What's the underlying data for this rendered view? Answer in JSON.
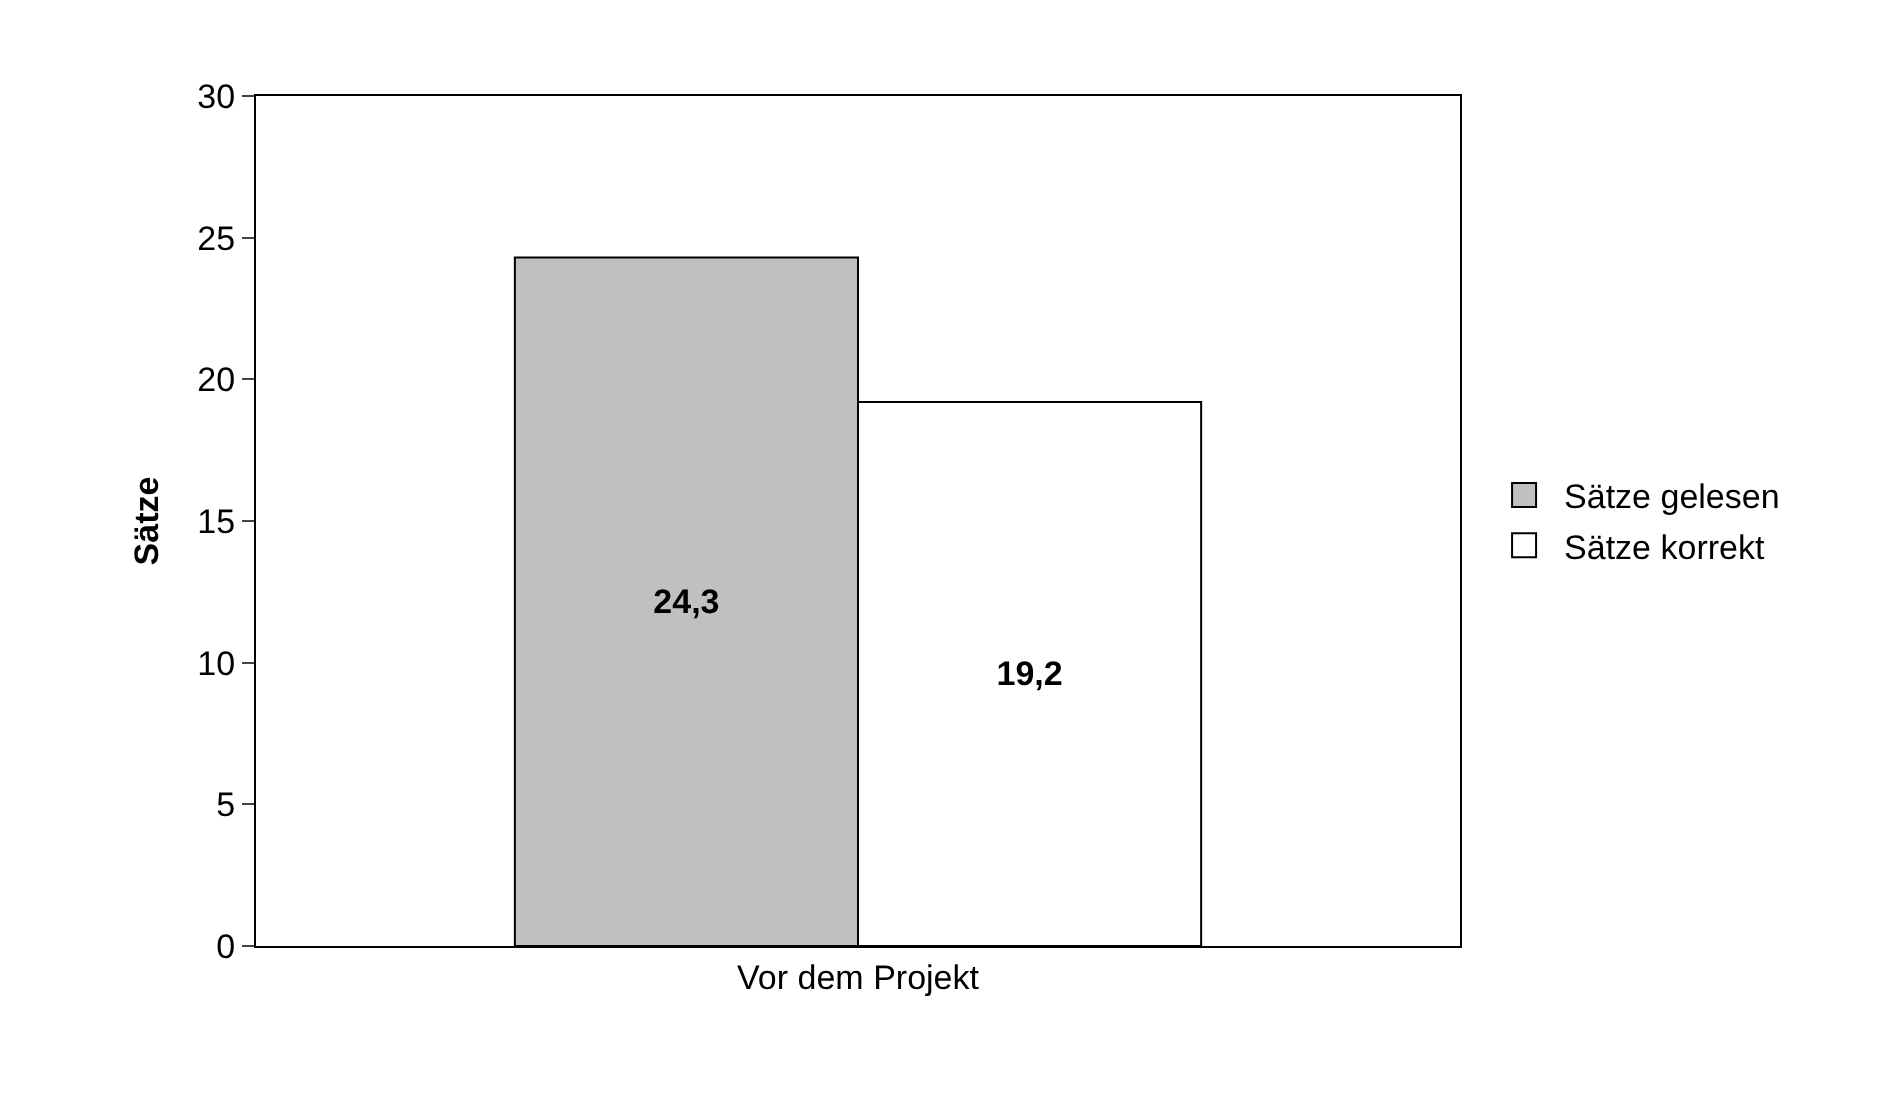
{
  "chart_data": {
    "type": "bar",
    "ylabel": "Sätze",
    "categories": [
      "Vor dem Projekt"
    ],
    "series": [
      {
        "name": "Sätze gelesen",
        "color": "#c0c0c0",
        "values": [
          24.3
        ],
        "value_labels": [
          "24,3"
        ]
      },
      {
        "name": "Sätze korrekt",
        "color": "#ffffff",
        "values": [
          19.2
        ],
        "value_labels": [
          "19,2"
        ]
      }
    ],
    "ylim": [
      0,
      30
    ],
    "yticks": [
      0,
      5,
      10,
      15,
      20,
      25,
      30
    ],
    "legend": "right"
  }
}
